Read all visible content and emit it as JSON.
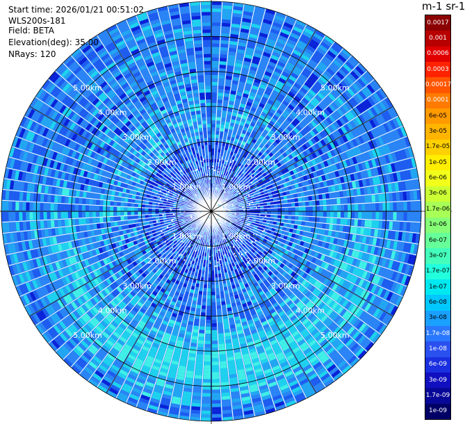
{
  "header": {
    "start_time": "Start time: 2026/01/21 00:51:02",
    "instrument": "WLS200s-181",
    "field": "Field: BETA",
    "elevation": "Elevation(deg): 35.00",
    "nrays": "NRays: 120"
  },
  "colorbar": {
    "title": "m-1 sr-1",
    "labels": [
      "0.0017",
      "0.001",
      "0.0006",
      "0.0003",
      "0.00017",
      "0.0001",
      "6e-05",
      "3e-05",
      "1.7e-05",
      "1e-05",
      "6e-06",
      "3e-06",
      "1.7e-06",
      "1e-06",
      "6e-07",
      "3e-07",
      "1.7e-07",
      "1e-07",
      "6e-08",
      "3e-08",
      "1.7e-08",
      "1e-08",
      "6e-09",
      "3e-09",
      "1.7e-09",
      "1e-09"
    ],
    "colors": [
      "#8b0000",
      "#b80000",
      "#e00000",
      "#ff2200",
      "#ff5500",
      "#ff7a00",
      "#ff9a00",
      "#ffb400",
      "#ffd000",
      "#ffee00",
      "#f2ff1a",
      "#ccff33",
      "#a8ff55",
      "#86ff77",
      "#66ff99",
      "#44ffbb",
      "#22ffdd",
      "#00e8f0",
      "#00c8ff",
      "#1aa0ff",
      "#2a78ff",
      "#2a50f0",
      "#1a30e0",
      "#1010c0",
      "#080898",
      "#000066"
    ]
  },
  "chart_data": {
    "type": "heatmap",
    "projection": "polar",
    "field": "BETA",
    "units": "m-1 sr-1",
    "nrays": 120,
    "elevation_deg": 35.0,
    "range_rings_km": [
      1,
      2,
      3,
      4,
      5
    ],
    "range_ring_labels": [
      "1.00km",
      "2.00km",
      "3.00km",
      "4.00km",
      "5.00km"
    ],
    "max_range_km": 6.0,
    "color_scale": "log",
    "value_range": [
      1e-09,
      0.0017
    ]
  }
}
